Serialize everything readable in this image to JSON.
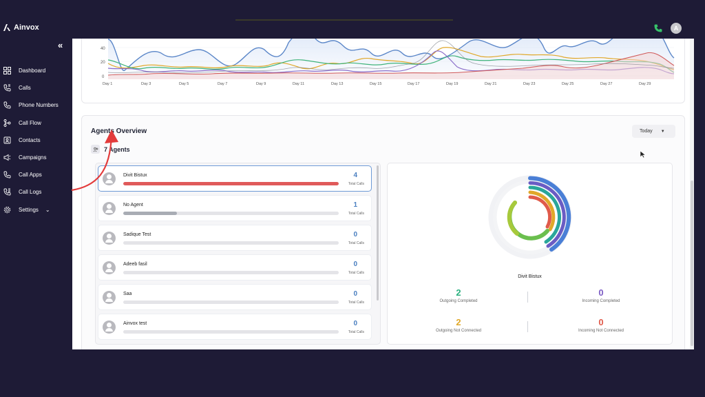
{
  "app": {
    "title": "Ainvox"
  },
  "sidebar": {
    "items": [
      {
        "label": "Dashboard",
        "icon": "dashboard-icon"
      },
      {
        "label": "Calls",
        "icon": "calls-icon"
      },
      {
        "label": "Phone Numbers",
        "icon": "phone-numbers-icon"
      },
      {
        "label": "Call Flow",
        "icon": "call-flow-icon"
      },
      {
        "label": "Contacts",
        "icon": "contacts-icon"
      },
      {
        "label": "Campaigns",
        "icon": "campaigns-icon"
      },
      {
        "label": "Call Apps",
        "icon": "call-apps-icon"
      },
      {
        "label": "Call Logs",
        "icon": "call-logs-icon"
      },
      {
        "label": "Settings",
        "icon": "settings-icon"
      }
    ]
  },
  "header": {
    "avatar_initial": "A"
  },
  "calls_chart": {
    "y_ticks": [
      "40",
      "20",
      "0"
    ],
    "x_ticks": [
      "Day 1",
      "Day 3",
      "Day 5",
      "Day 7",
      "Day 9",
      "Day 11",
      "Day 13",
      "Day 15",
      "Day 17",
      "Day 19",
      "Day 21",
      "Day 23",
      "Day 25",
      "Day 27",
      "Day 29"
    ]
  },
  "agents_overview": {
    "title": "Agents Overview",
    "period": "Today",
    "count_label": "7 Agents",
    "total_calls_label": "Total Calls",
    "agents": [
      {
        "name": "Divit Bistux",
        "calls": "4",
        "fill": 1.0,
        "color": "#e05a5a"
      },
      {
        "name": "No Agent",
        "calls": "1",
        "fill": 0.25,
        "color": "#a8acb4"
      },
      {
        "name": "Sadique Test",
        "calls": "0",
        "fill": 0,
        "color": "#a8acb4"
      },
      {
        "name": "Adeeb fasil",
        "calls": "0",
        "fill": 0,
        "color": "#a8acb4"
      },
      {
        "name": "Saa",
        "calls": "0",
        "fill": 0,
        "color": "#a8acb4"
      },
      {
        "name": "Ainvox test",
        "calls": "0",
        "fill": 0,
        "color": "#a8acb4"
      }
    ],
    "selected_agent": "Divit Bistux",
    "stats": {
      "outgoing_completed": {
        "value": "2",
        "label": "Outgoing Completed",
        "color": "#2bb07f"
      },
      "incoming_completed": {
        "value": "0",
        "label": "Incoming Completed",
        "color": "#7c5cc4"
      },
      "outgoing_not_connected": {
        "value": "2",
        "label": "Outgoing Not Connected",
        "color": "#e0a82a"
      },
      "incoming_not_connected": {
        "value": "0",
        "label": "Incoming Not Connected",
        "color": "#e05a4a"
      }
    }
  }
}
